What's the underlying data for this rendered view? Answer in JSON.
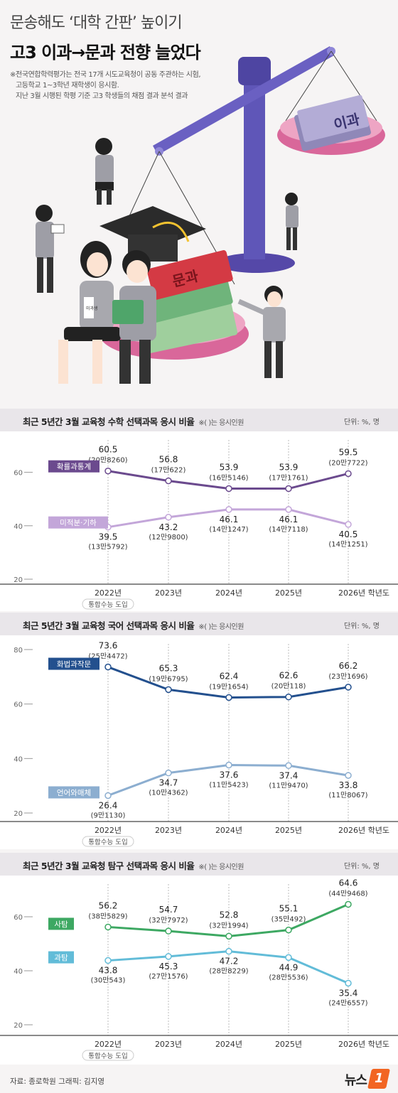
{
  "header": {
    "title_line1": "문송해도 ‘대학 간판’ 높이기",
    "title_line2": "고3 이과→문과 전향 늘었다",
    "notes": [
      "※전국연합학력평가는 전국 17개 시도교육청이 공동 주관하는 시험,",
      "고등학교 1~3학년 재학생이 응시함.",
      "지난 3월 시행된 학평 기준 고3 학생들의 채점 결과 분석 결과"
    ]
  },
  "illustration": {
    "book_right_label": "이과",
    "book_left_label": "문과",
    "badge_label": "미과생"
  },
  "footer": {
    "source": "자료: 종로학원  그래픽: 김지영",
    "logo_text": "뉴스",
    "logo_mark": "1"
  },
  "chart_data": [
    {
      "type": "line",
      "title": "최근 5년간 3월 교육청 수학 선택과목 응시 비율",
      "note": "※( )는 응시인원",
      "unit": "단위: %, 명",
      "categories": [
        "2022년",
        "2023년",
        "2024년",
        "2025년",
        "2026년 학년도"
      ],
      "category_note": "통합수능 도입",
      "yticks": [
        60,
        40,
        20
      ],
      "ylim": [
        20,
        70
      ],
      "series": [
        {
          "name": "확률과통계",
          "color": "#6b4a8e",
          "values": [
            60.5,
            56.8,
            53.9,
            53.9,
            59.5
          ],
          "counts": [
            "(20만8260)",
            "(17만622)",
            "(16만5146)",
            "(17만1761)",
            "(20만7722)"
          ]
        },
        {
          "name": "미적분·기하",
          "color": "#c3a6d9",
          "values": [
            39.5,
            43.2,
            46.1,
            46.1,
            40.5
          ],
          "counts": [
            "(13만5792)",
            "(12만9800)",
            "(14만1247)",
            "(14만7118)",
            "(14만1251)"
          ]
        }
      ]
    },
    {
      "type": "line",
      "title": "최근 5년간 3월 교육청 국어 선택과목 응시 비율",
      "note": "※( )는 응시인원",
      "unit": "단위: %, 명",
      "categories": [
        "2022년",
        "2023년",
        "2024년",
        "2025년",
        "2026년 학년도"
      ],
      "category_note": "통합수능 도입",
      "yticks": [
        80,
        60,
        40,
        20
      ],
      "ylim": [
        20,
        80
      ],
      "series": [
        {
          "name": "화법과작문",
          "color": "#23508e",
          "values": [
            73.6,
            65.3,
            62.4,
            62.6,
            66.2
          ],
          "counts": [
            "(25만4472)",
            "(19만6795)",
            "(19만1654)",
            "(20만118)",
            "(23만1696)"
          ]
        },
        {
          "name": "언어와매체",
          "color": "#8caed0",
          "values": [
            26.4,
            34.7,
            37.6,
            37.4,
            33.8
          ],
          "counts": [
            "(9만1130)",
            "(10만4362)",
            "(11만5423)",
            "(11만9470)",
            "(11만8067)"
          ]
        }
      ]
    },
    {
      "type": "line",
      "title": "최근 5년간 3월 교육청 탐구 선택과목 응시 비율",
      "note": "※( )는 응시인원",
      "unit": "단위: %, 명",
      "categories": [
        "2022년",
        "2023년",
        "2024년",
        "2025년",
        "2026년 학년도"
      ],
      "category_note": "통합수능 도입",
      "yticks": [
        60,
        40,
        20
      ],
      "ylim": [
        20,
        70
      ],
      "series": [
        {
          "name": "사탐",
          "color": "#3da862",
          "values": [
            56.2,
            54.7,
            52.8,
            55.1,
            64.6
          ],
          "counts": [
            "(38만5829)",
            "(32만7972)",
            "(32만1994)",
            "(35만492)",
            "(44만9468)"
          ]
        },
        {
          "name": "과탐",
          "color": "#62bcd8",
          "values": [
            43.8,
            45.3,
            47.2,
            44.9,
            35.4
          ],
          "counts": [
            "(30만543)",
            "(27만1576)",
            "(28만8229)",
            "(28만5536)",
            "(24만6557)"
          ]
        }
      ]
    }
  ]
}
